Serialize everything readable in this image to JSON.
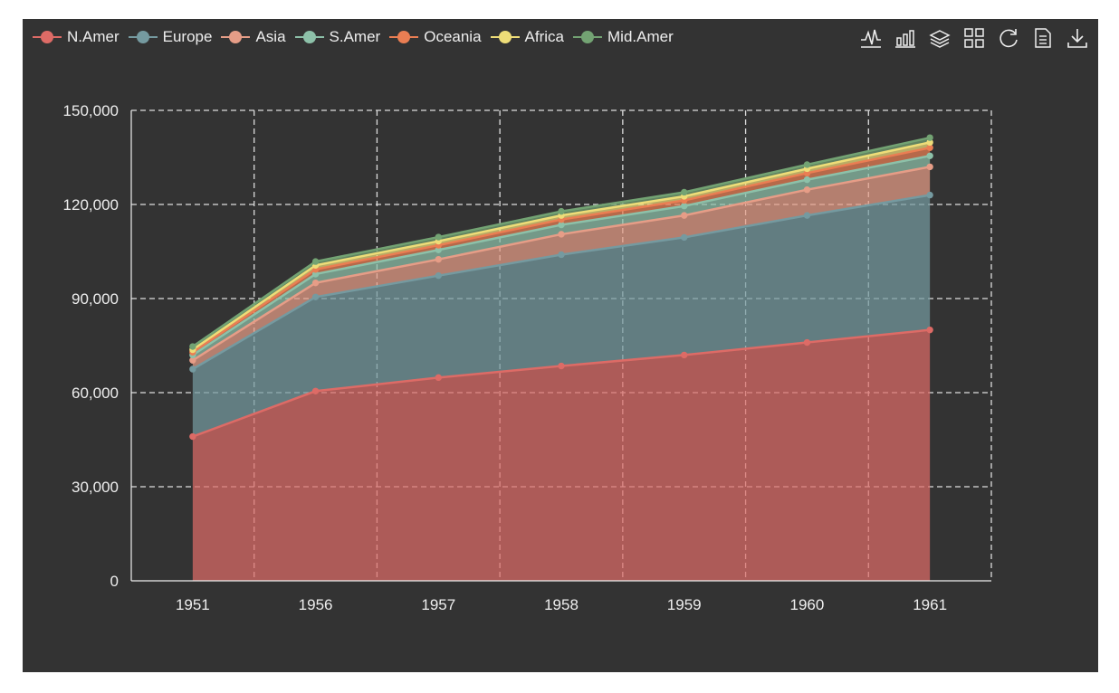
{
  "colors": {
    "background": "#333333",
    "grid": "#dddddd",
    "axis": "#eeeeee",
    "text": "#eeeeee"
  },
  "toolbox": [
    {
      "name": "line-chart-icon"
    },
    {
      "name": "bar-chart-icon"
    },
    {
      "name": "stack-icon"
    },
    {
      "name": "tiled-icon"
    },
    {
      "name": "restore-icon"
    },
    {
      "name": "data-view-icon"
    },
    {
      "name": "save-image-icon"
    }
  ],
  "chart_data": {
    "type": "area",
    "stacked": true,
    "categories": [
      "1951",
      "1956",
      "1957",
      "1958",
      "1959",
      "1960",
      "1961"
    ],
    "ylim": [
      0,
      150000
    ],
    "yticks": [
      0,
      30000,
      60000,
      90000,
      120000,
      150000
    ],
    "ytick_labels": [
      "0",
      "30,000",
      "60,000",
      "90,000",
      "120,000",
      "150,000"
    ],
    "grid": true,
    "legend_position": "top-left",
    "series": [
      {
        "name": "N.Amer",
        "color": "#dd6b66",
        "values": [
          46000,
          60500,
          64800,
          68500,
          72000,
          76000,
          80000
        ]
      },
      {
        "name": "Europe",
        "color": "#759aa0",
        "values": [
          21500,
          30000,
          32500,
          35500,
          37500,
          40500,
          43000
        ]
      },
      {
        "name": "Asia",
        "color": "#e69d87",
        "values": [
          2800,
          4500,
          5200,
          6500,
          7000,
          8200,
          9000
        ]
      },
      {
        "name": "S.Amer",
        "color": "#8dc1a9",
        "values": [
          1700,
          2800,
          3000,
          3000,
          3000,
          3200,
          3500
        ]
      },
      {
        "name": "Oceania",
        "color": "#ea7e53",
        "values": [
          900,
          1500,
          1500,
          1700,
          1800,
          2100,
          2600
        ]
      },
      {
        "name": "Africa",
        "color": "#eedd78",
        "values": [
          800,
          1300,
          1300,
          1300,
          1300,
          1400,
          1700
        ]
      },
      {
        "name": "Mid.Amer",
        "color": "#73a373",
        "values": [
          1000,
          1200,
          1300,
          1300,
          1300,
          1300,
          1500
        ]
      }
    ]
  }
}
